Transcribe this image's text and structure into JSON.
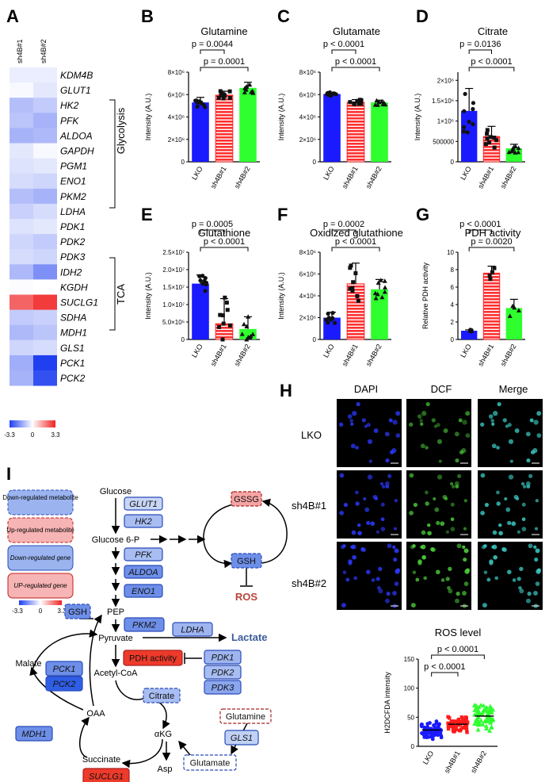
{
  "panels": {
    "A": {
      "letter": "A",
      "columns": [
        "sh4B#1",
        "sh4B#2"
      ],
      "genes": [
        "KDM4B",
        "GLUT1",
        "HK2",
        "PFK",
        "ALDOA",
        "GAPDH",
        "PGM1",
        "ENO1",
        "PKM2",
        "LDHA",
        "PDK1",
        "PDK2",
        "PDK3",
        "IDH2",
        "KGDH",
        "SUCLG1",
        "SDHA",
        "MDH1",
        "GLS1",
        "PCK1",
        "PCK2"
      ],
      "values": [
        [
          -0.3,
          -0.3
        ],
        [
          -0.1,
          -0.4
        ],
        [
          -1.1,
          -0.9
        ],
        [
          -1.0,
          -1.3
        ],
        [
          -1.3,
          -1.2
        ],
        [
          -0.4,
          -0.1
        ],
        [
          -0.5,
          -0.4
        ],
        [
          -0.6,
          -0.7
        ],
        [
          -1.1,
          -1.3
        ],
        [
          -0.8,
          -0.6
        ],
        [
          -0.5,
          -0.4
        ],
        [
          -0.7,
          -0.9
        ],
        [
          -0.6,
          -0.7
        ],
        [
          -1.2,
          -1.9
        ],
        [
          -0.05,
          0.0
        ],
        [
          2.3,
          2.9
        ],
        [
          -0.9,
          -0.8
        ],
        [
          -1.2,
          -1.0
        ],
        [
          -0.7,
          -0.6
        ],
        [
          -1.4,
          -3.3
        ],
        [
          -1.3,
          -3.0
        ]
      ],
      "groups": [
        {
          "label": "Glycolysis"
        },
        {
          "label": "TCA"
        }
      ],
      "colorbar": {
        "min": "-3.3",
        "mid": "0",
        "max": "3.3",
        "colors": [
          "#1f3ff0",
          "#ffffff",
          "#f02020"
        ]
      }
    },
    "B": {
      "letter": "B"
    },
    "C": {
      "letter": "C"
    },
    "D": {
      "letter": "D"
    },
    "E": {
      "letter": "E"
    },
    "F": {
      "letter": "F"
    },
    "G": {
      "letter": "G"
    },
    "H": {
      "letter": "H"
    },
    "I": {
      "letter": "I"
    },
    "H_images": {
      "columns": [
        "DAPI",
        "DCF",
        "Merge"
      ],
      "rows": [
        "LKO",
        "sh4B#1",
        "sh4B#2"
      ]
    }
  },
  "chart_data": [
    {
      "panel": "B",
      "type": "bar",
      "title": "Glutamine",
      "ylabel": "Intensity (A.U.)",
      "categories": [
        "LKO",
        "sh4B#1",
        "sh4B#2"
      ],
      "values": [
        5300000.0,
        5950000.0,
        6600000.0
      ],
      "errors": [
        450000.0,
        350000.0,
        500000.0
      ],
      "ylim": [
        0,
        8000000.0
      ],
      "yticks": [
        {
          "v": 0,
          "t": "0"
        },
        {
          "v": 2000000.0,
          "t": "2×10⁶"
        },
        {
          "v": 4000000.0,
          "t": "4×10⁶"
        },
        {
          "v": 6000000.0,
          "t": "6×10⁶"
        },
        {
          "v": 8000000.0,
          "t": "8×10⁶"
        }
      ],
      "pvalues": [
        {
          "label": "p = 0.0044",
          "from": 0,
          "to": 1
        },
        {
          "label": "p = 0.0001",
          "from": 0,
          "to": 2
        }
      ]
    },
    {
      "panel": "C",
      "type": "bar",
      "title": "Glutamate",
      "ylabel": "Intensity (A.U.)",
      "categories": [
        "LKO",
        "sh4B#1",
        "sh4B#2"
      ],
      "values": [
        6050000.0,
        5300000.0,
        5300000.0
      ],
      "errors": [
        150000.0,
        250000.0,
        200000.0
      ],
      "ylim": [
        0,
        8000000.0
      ],
      "yticks": [
        {
          "v": 0,
          "t": "0"
        },
        {
          "v": 2000000.0,
          "t": "2×10⁶"
        },
        {
          "v": 4000000.0,
          "t": "4×10⁶"
        },
        {
          "v": 6000000.0,
          "t": "6×10⁶"
        },
        {
          "v": 8000000.0,
          "t": "8×10⁶"
        }
      ],
      "pvalues": [
        {
          "label": "p < 0.0001",
          "from": 0,
          "to": 1
        },
        {
          "label": "p < 0.0001",
          "from": 0,
          "to": 2
        }
      ]
    },
    {
      "panel": "D",
      "type": "bar",
      "title": "Citrate",
      "ylabel": "Intensity (A.U.)",
      "categories": [
        "LKO",
        "sh4B#1",
        "sh4B#2"
      ],
      "values": [
        1250000.0,
        620000.0,
        330000.0
      ],
      "errors": [
        550000.0,
        250000.0,
        100000.0
      ],
      "ylim": [
        0,
        2200000.0
      ],
      "yticks": [
        {
          "v": 0,
          "t": "0"
        },
        {
          "v": 500000.0,
          "t": "500000"
        },
        {
          "v": 1000000.0,
          "t": "1×10⁶"
        },
        {
          "v": 1500000.0,
          "t": "1.5×10⁶"
        },
        {
          "v": 2000000.0,
          "t": "2×10⁶"
        }
      ],
      "pvalues": [
        {
          "label": "p = 0.0136",
          "from": 0,
          "to": 1
        },
        {
          "label": "p < 0.0001",
          "from": 0,
          "to": 2
        }
      ]
    },
    {
      "panel": "E",
      "type": "bar",
      "title": "Glutathione",
      "ylabel": "Intensity (A.U.)",
      "categories": [
        "LKO",
        "sh4B#1",
        "sh4B#2"
      ],
      "values": [
        16000000.0,
        4500000.0,
        3000000.0
      ],
      "errors": [
        2500000.0,
        7200000.0,
        3500000.0
      ],
      "ylim": [
        0,
        25000000.0
      ],
      "yticks": [
        {
          "v": 0,
          "t": "0"
        },
        {
          "v": 5000000.0,
          "t": "5.0×10⁶"
        },
        {
          "v": 10000000.0,
          "t": "1.0×10⁷"
        },
        {
          "v": 15000000.0,
          "t": "1.5×10⁷"
        },
        {
          "v": 20000000.0,
          "t": "2.0×10⁷"
        },
        {
          "v": 25000000.0,
          "t": "2.5×10⁷"
        }
      ],
      "pvalues": [
        {
          "label": "p = 0.0005",
          "from": 0,
          "to": 1
        },
        {
          "label": "p < 0.0001",
          "from": 0,
          "to": 2
        }
      ]
    },
    {
      "panel": "F",
      "type": "bar",
      "title": "Oxidized glutathione",
      "ylabel": "Intensity (A.U.)",
      "categories": [
        "LKO",
        "sh4B#1",
        "sh4B#2"
      ],
      "values": [
        2000000.0,
        5100000.0,
        4600000.0
      ],
      "errors": [
        500000.0,
        1900000.0,
        900000.0
      ],
      "ylim": [
        0,
        8000000.0
      ],
      "yticks": [
        {
          "v": 0,
          "t": "0"
        },
        {
          "v": 2000000.0,
          "t": "2×10⁶"
        },
        {
          "v": 4000000.0,
          "t": "4×10⁶"
        },
        {
          "v": 6000000.0,
          "t": "6×10⁶"
        },
        {
          "v": 8000000.0,
          "t": "8×10⁶"
        }
      ],
      "pvalues": [
        {
          "label": "p = 0.0002",
          "from": 0,
          "to": 1
        },
        {
          "label": "p < 0.0001",
          "from": 0,
          "to": 2
        }
      ]
    },
    {
      "panel": "G",
      "type": "bar",
      "title": "PDH activity",
      "ylabel": "Relative PDH activity",
      "categories": [
        "LKO",
        "sh4B#1",
        "sh4B#2"
      ],
      "values": [
        1.0,
        7.6,
        3.6
      ],
      "errors": [
        0.1,
        0.8,
        1.0
      ],
      "ylim": [
        0,
        10
      ],
      "yticks": [
        {
          "v": 0,
          "t": "0"
        },
        {
          "v": 2,
          "t": "2"
        },
        {
          "v": 4,
          "t": "4"
        },
        {
          "v": 6,
          "t": "6"
        },
        {
          "v": 8,
          "t": "8"
        },
        {
          "v": 10,
          "t": "10"
        }
      ],
      "pvalues": [
        {
          "label": "p < 0.0001",
          "from": 0,
          "to": 1
        },
        {
          "label": "p = 0.0020",
          "from": 0,
          "to": 2
        }
      ]
    },
    {
      "panel": "H",
      "type": "scatter",
      "title": "ROS level",
      "ylabel": "H2DCFDA intensity",
      "categories": [
        "LKO",
        "sh4B#1",
        "sh4B#2"
      ],
      "values": [
        28,
        38,
        52
      ],
      "spread": [
        9,
        10,
        15
      ],
      "ylim": [
        0,
        150
      ],
      "yticks": [
        {
          "v": 0,
          "t": "0"
        },
        {
          "v": 50,
          "t": "50"
        },
        {
          "v": 100,
          "t": "100"
        },
        {
          "v": 150,
          "t": "150"
        }
      ],
      "pvalues": [
        {
          "label": "p < 0.0001",
          "from": 0,
          "to": 1
        },
        {
          "label": "p < 0.0001",
          "from": 0,
          "to": 2
        }
      ]
    }
  ],
  "pathway": {
    "legend": {
      "down_metabolite": "Down-regulated metabolite",
      "up_metabolite": "Up-regulated metabolite",
      "down_gene": "Down-regulated gene",
      "up_gene": "UP-regulated gene",
      "scale_min": "-3.3",
      "scale_mid": "0",
      "scale_max": "3.3"
    },
    "metabolites": {
      "glucose": "Glucose",
      "glucose6p": "Glucose 6-P",
      "pep": "PEP",
      "pyruvate": "Pyruvate",
      "acetylcoa": "Acetyl-CoA",
      "malate": "Malate",
      "oaa": "OAA",
      "akg": "αKG",
      "succinate": "Succinate",
      "asp": "Asp",
      "lactate": "Lactate",
      "ros": "ROS"
    },
    "boxes": {
      "glut1": "GLUT1",
      "hk2": "HK2",
      "pfk": "PFK",
      "aldoa": "ALDOA",
      "eno1": "ENO1",
      "pkm2": "PKM2",
      "ldha": "LDHA",
      "pdh": "PDH activity",
      "pdk1": "PDK1",
      "pdk2": "PDK2",
      "pdk3": "PDK3",
      "pck1": "PCK1",
      "pck2": "PCK2",
      "mdh1": "MDH1",
      "suclg1": "SUCLG1",
      "gls1": "GLS1",
      "gsh": "GSH",
      "gsh2": "GSH",
      "gssg": "GSSG",
      "citrate": "Citrate",
      "glutamine": "Glutamine",
      "glutamate": "Glutamate"
    }
  }
}
